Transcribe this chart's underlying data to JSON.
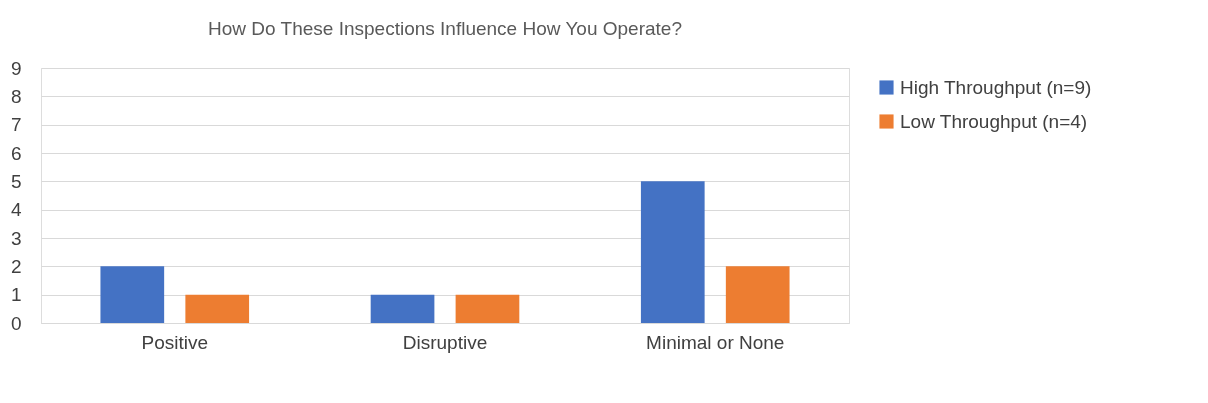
{
  "chart_data": {
    "type": "bar",
    "title": "How Do These Inspections Influence How You Operate?",
    "categories": [
      "Positive",
      "Disruptive",
      "Minimal or None"
    ],
    "series": [
      {
        "name": "High Throughput (n=9)",
        "color": "#4472c4",
        "values": [
          2,
          1,
          5
        ]
      },
      {
        "name": "Low Throughput (n=4)",
        "color": "#ed7d31",
        "values": [
          1,
          1,
          2
        ]
      }
    ],
    "ylim": [
      0,
      9
    ],
    "yticks": [
      0,
      1,
      2,
      3,
      4,
      5,
      6,
      7,
      8,
      9
    ],
    "grid": "y",
    "legend": "right"
  }
}
